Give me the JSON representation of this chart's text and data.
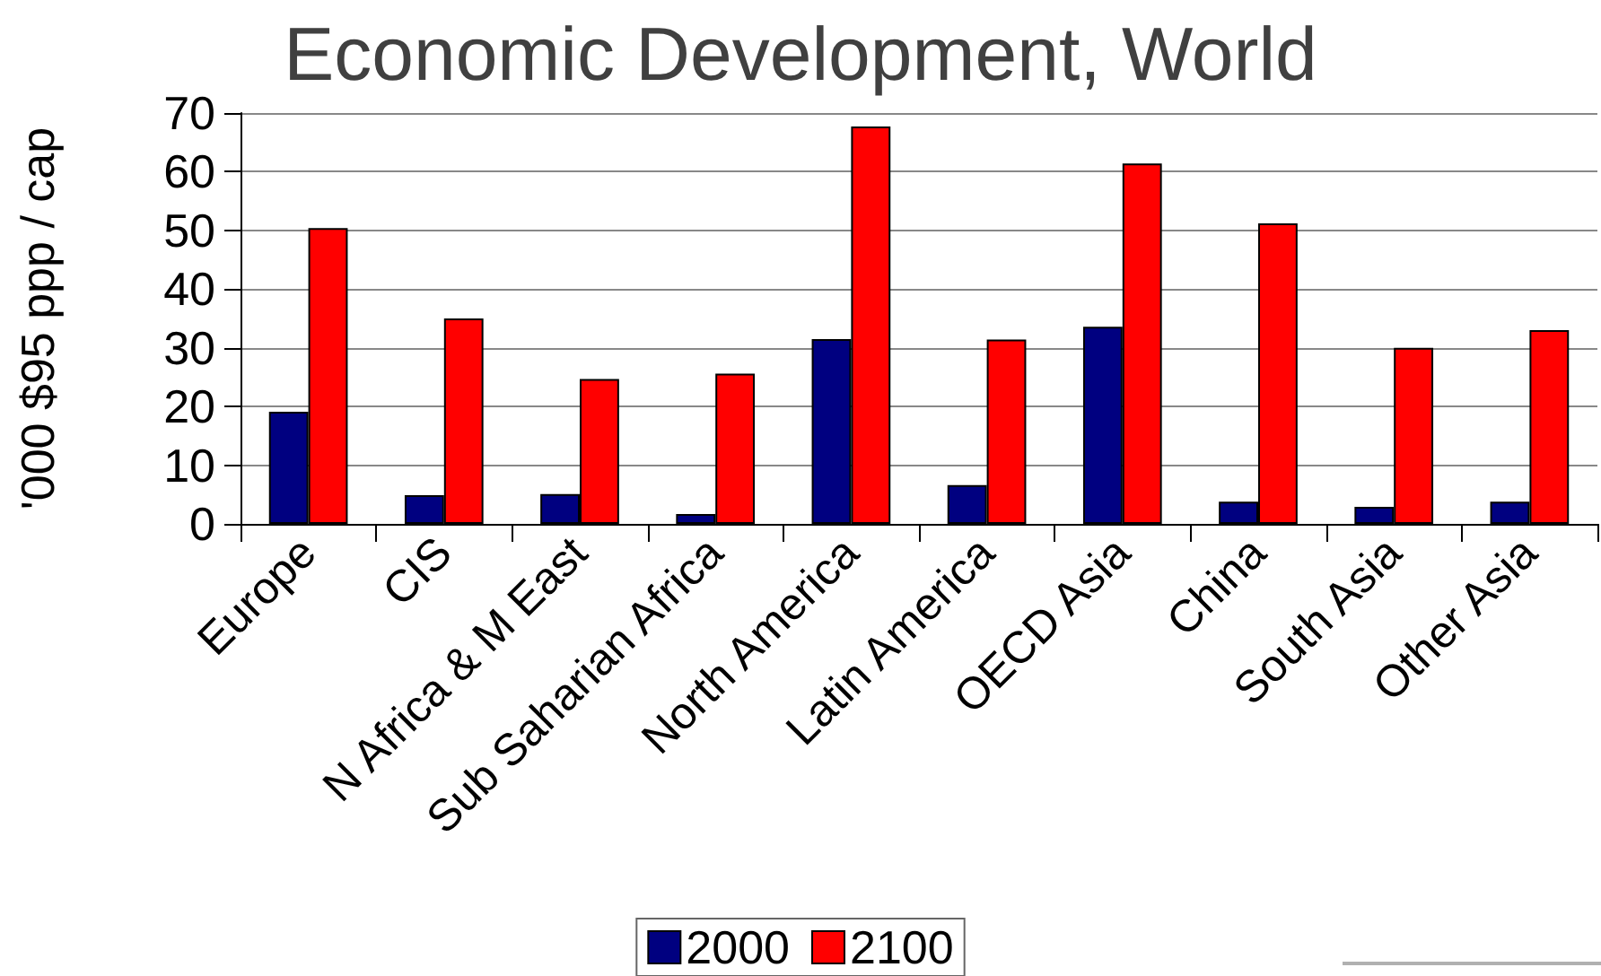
{
  "chart_data": {
    "type": "bar",
    "title": "Economic Development, World",
    "ylabel": "'000 $95 ppp / cap",
    "categories": [
      "Europe",
      "CIS",
      "N Africa & M East",
      "Sub Saharian Africa",
      "North America",
      "Latin America",
      "OECD Asia",
      "China",
      "South Asia",
      "Other Asia"
    ],
    "series": [
      {
        "name": "2000",
        "color": "#000080",
        "values": [
          19.1,
          4.9,
          5.1,
          1.7,
          31.5,
          6.6,
          33.6,
          3.8,
          2.9,
          3.8
        ]
      },
      {
        "name": "2100",
        "color": "#ff0000",
        "values": [
          50.4,
          35.0,
          24.7,
          25.6,
          67.7,
          31.4,
          61.4,
          51.2,
          30.0,
          33.0
        ]
      }
    ],
    "ylim": [
      0,
      70
    ],
    "yticks": [
      0,
      10,
      20,
      30,
      40,
      50,
      60,
      70
    ],
    "grid": "y",
    "legend": "bottom"
  }
}
